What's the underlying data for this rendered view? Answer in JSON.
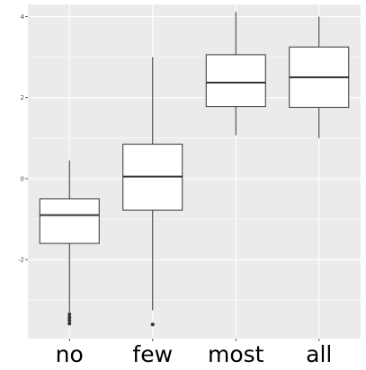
{
  "chart_data": {
    "type": "boxplot",
    "title": "",
    "xlabel": "",
    "ylabel": "",
    "categories": [
      "no",
      "few",
      "most",
      "all"
    ],
    "ylim": [
      -3.95,
      4.3
    ],
    "yticks": [
      -2,
      0,
      2,
      4
    ],
    "ytick_labels": [
      "-2",
      "0",
      "2",
      "4"
    ],
    "grid": true,
    "legend": "none",
    "boxes": [
      {
        "category": "no",
        "whisker_low": -3.3,
        "q1": -1.6,
        "median": -0.9,
        "q3": -0.5,
        "whisker_high": 0.45,
        "outliers": [
          -3.35,
          -3.43,
          -3.5,
          -3.58
        ]
      },
      {
        "category": "few",
        "whisker_low": -3.25,
        "q1": -0.78,
        "median": 0.05,
        "q3": 0.85,
        "whisker_high": 3.0,
        "outliers": [
          -3.6
        ]
      },
      {
        "category": "most",
        "whisker_low": 1.07,
        "q1": 1.78,
        "median": 2.37,
        "q3": 3.06,
        "whisker_high": 4.12,
        "outliers": []
      },
      {
        "category": "all",
        "whisker_low": 1.0,
        "q1": 1.76,
        "median": 2.5,
        "q3": 3.25,
        "whisker_high": 4.0,
        "outliers": []
      }
    ],
    "colors": {
      "panel_background": "#ebebeb",
      "grid": "#ffffff",
      "box_fill": "#ffffff",
      "box_stroke": "#333333",
      "outlier": "#333333"
    }
  }
}
